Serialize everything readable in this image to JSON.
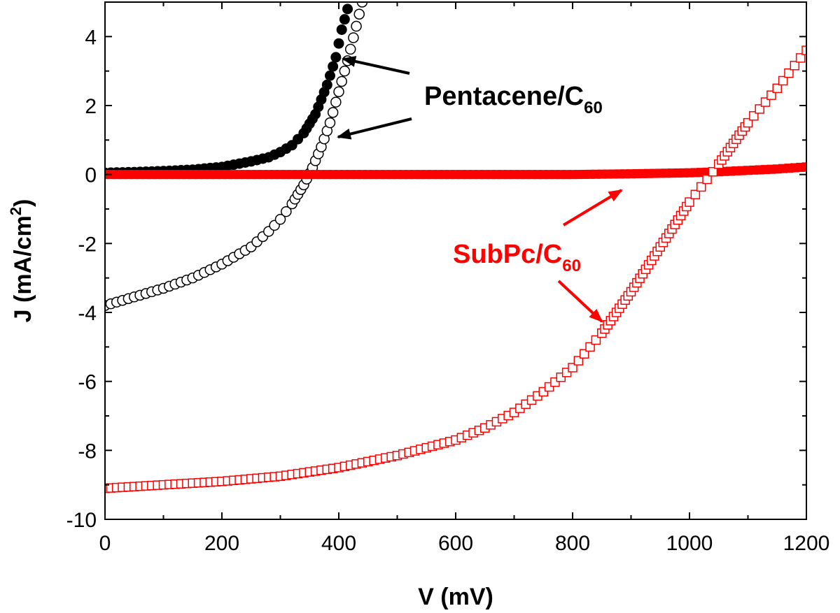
{
  "chart_data": {
    "type": "scatter",
    "title": "",
    "xlabel": "V (mV)",
    "ylabel_prefix": "J (mA/cm",
    "ylabel_sup": "2",
    "ylabel_suffix": ")",
    "xlim": [
      0,
      1200
    ],
    "ylim": [
      -10,
      5
    ],
    "xticks": [
      0,
      200,
      400,
      600,
      800,
      1000,
      1200
    ],
    "xtick_labels": [
      "0",
      "200",
      "400",
      "600",
      "800",
      "1000",
      "1200"
    ],
    "yticks": [
      -10,
      -8,
      -6,
      -4,
      -2,
      0,
      2,
      4
    ],
    "ytick_labels": [
      "-10",
      "-8",
      "-6",
      "-4",
      "-2",
      "0",
      "2",
      "4"
    ],
    "grid": false,
    "colors": {
      "pentacene": "#000000",
      "subpc": "#ff0000"
    },
    "annotations": [
      {
        "id": "pentacene",
        "text": "Pentacene/C",
        "subscript": "60",
        "color": "#000000"
      },
      {
        "id": "subpc",
        "text": "SubPc/C",
        "subscript": "60",
        "color": "#ff0000"
      }
    ],
    "series": [
      {
        "id": "pentacene-dark",
        "marker": "filled-circle",
        "color": "#000000",
        "x": [
          0,
          50,
          100,
          150,
          200,
          250,
          280,
          300,
          320,
          340,
          360,
          380,
          395,
          405,
          415,
          420
        ],
        "y": [
          0.05,
          0.07,
          0.1,
          0.14,
          0.22,
          0.38,
          0.5,
          0.65,
          0.85,
          1.2,
          1.75,
          2.6,
          3.4,
          4.2,
          4.8,
          5.2
        ]
      },
      {
        "id": "pentacene-light",
        "marker": "open-circle",
        "color": "#000000",
        "x": [
          0,
          50,
          100,
          150,
          200,
          250,
          280,
          300,
          320,
          340,
          355,
          370,
          385,
          400,
          415,
          430,
          440
        ],
        "y": [
          -3.8,
          -3.55,
          -3.3,
          -3.0,
          -2.6,
          -2.1,
          -1.65,
          -1.3,
          -0.85,
          -0.3,
          0.2,
          0.8,
          1.5,
          2.4,
          3.3,
          4.3,
          5.0
        ]
      },
      {
        "id": "subpc-dark",
        "marker": "filled-square",
        "color": "#ff0000",
        "x": [
          0,
          200,
          400,
          600,
          800,
          900,
          1000,
          1050,
          1100,
          1150,
          1200
        ],
        "y": [
          0.0,
          0.0,
          0.0,
          0.0,
          0.0,
          0.02,
          0.05,
          0.08,
          0.12,
          0.16,
          0.22
        ]
      },
      {
        "id": "subpc-light",
        "marker": "open-square",
        "color": "#ff0000",
        "x": [
          0,
          100,
          200,
          300,
          400,
          500,
          600,
          650,
          700,
          750,
          800,
          850,
          900,
          950,
          1000,
          1050,
          1100,
          1150,
          1200
        ],
        "y": [
          -9.1,
          -9.0,
          -8.9,
          -8.75,
          -8.5,
          -8.15,
          -7.7,
          -7.35,
          -6.9,
          -6.3,
          -5.6,
          -4.6,
          -3.4,
          -2.1,
          -0.8,
          0.3,
          1.5,
          2.5,
          3.6
        ]
      }
    ]
  }
}
